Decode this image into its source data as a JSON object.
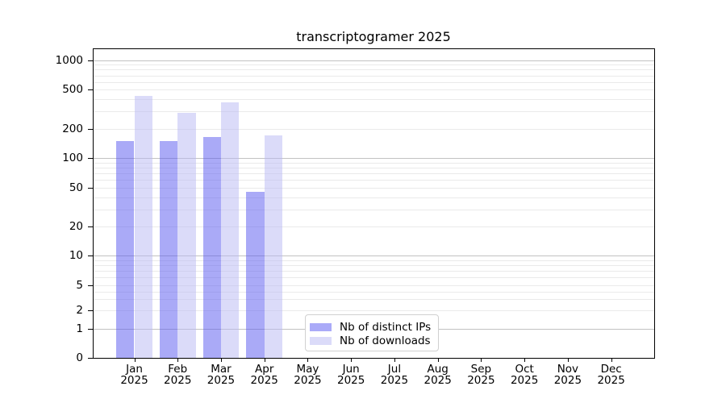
{
  "title": "transcriptogramer 2025",
  "chart_data": {
    "type": "bar",
    "title": "transcriptogramer 2025",
    "categories": [
      "Jan",
      "Feb",
      "Mar",
      "Apr",
      "May",
      "Jun",
      "Jul",
      "Aug",
      "Sep",
      "Oct",
      "Nov",
      "Dec"
    ],
    "year_label": "2025",
    "series": [
      {
        "name": "Nb of distinct IPs",
        "swatch_color": "#aaaaf8",
        "bar_color": "rgba(85,85,240,0.5)",
        "values": [
          150,
          150,
          165,
          45,
          0,
          0,
          0,
          0,
          0,
          0,
          0,
          0
        ]
      },
      {
        "name": "Nb of downloads",
        "swatch_color": "#dbdbf9",
        "bar_color": "rgba(183,183,243,0.5)",
        "values": [
          435,
          290,
          370,
          170,
          0,
          0,
          0,
          0,
          0,
          0,
          0,
          0
        ]
      }
    ],
    "y_ticks": [
      0,
      1,
      2,
      5,
      10,
      20,
      50,
      100,
      200,
      500,
      1000
    ],
    "ylim": [
      0,
      1300
    ],
    "xlabel": "",
    "ylabel": "",
    "grid": "on",
    "yscale": "symlog",
    "legend_position": "lower center inside plot"
  },
  "colors": {
    "background": "#ffffff",
    "spine": "#000000",
    "grid_major": "#c2c2c2",
    "grid_minor": "#eaeaea",
    "text": "#000000",
    "legend_border": "#d0d0d0"
  }
}
